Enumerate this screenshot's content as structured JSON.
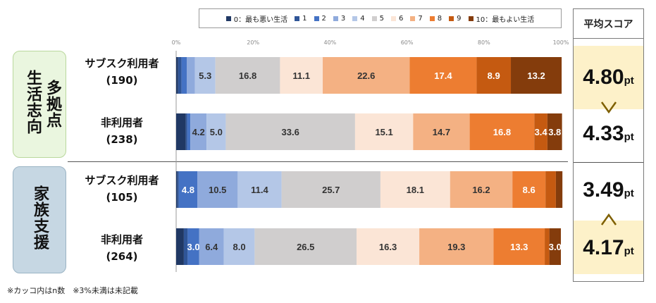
{
  "legend": [
    {
      "label": "0：最も悪い生活",
      "color": "#203864"
    },
    {
      "label": "1",
      "color": "#2f5597"
    },
    {
      "label": "2",
      "color": "#4472c4"
    },
    {
      "label": "3",
      "color": "#8faadc"
    },
    {
      "label": "4",
      "color": "#b4c7e7"
    },
    {
      "label": "5",
      "color": "#d0cece"
    },
    {
      "label": "6",
      "color": "#fbe5d6"
    },
    {
      "label": "7",
      "color": "#f4b183"
    },
    {
      "label": "8",
      "color": "#ed7d31"
    },
    {
      "label": "9",
      "color": "#c55a11"
    },
    {
      "label": "10：最もよい生活",
      "color": "#843c0c"
    }
  ],
  "groups": [
    {
      "chars": [
        "多",
        "拠",
        "点"
      ],
      "chars2": [
        "生",
        "活",
        "志",
        "向"
      ]
    },
    {
      "chars": [
        "家",
        "族",
        "支",
        "援"
      ]
    }
  ],
  "rows": [
    {
      "label": "サブスク利用者",
      "n": "(190)"
    },
    {
      "label": "非利用者",
      "n": "(238)"
    },
    {
      "label": "サブスク利用者",
      "n": "(105)"
    },
    {
      "label": "非利用者",
      "n": "(264)"
    }
  ],
  "score_panel": {
    "title": "平均スコア",
    "unit": "pt",
    "scores": [
      "4.80",
      "4.33",
      "3.49",
      "4.17"
    ]
  },
  "footnote": "※カッコ内はn数　※3%未満は未記載",
  "chart_data": {
    "type": "bar",
    "orientation": "horizontal",
    "stacked": true,
    "normalized": true,
    "xlim": [
      0,
      100
    ],
    "x_ticks": [
      "0%",
      "20%",
      "40%",
      "60%",
      "80%",
      "100%"
    ],
    "categories": [
      "サブスク利用者(190)",
      "非利用者(238)",
      "サブスク利用者(105)",
      "非利用者(264)"
    ],
    "label_threshold": 3,
    "series": [
      {
        "name": "0：最も悪い生活",
        "values": [
          0.5,
          2.5,
          0.3,
          2.0
        ]
      },
      {
        "name": "1",
        "values": [
          0.9,
          0.4,
          0.4,
          1.0
        ]
      },
      {
        "name": "2",
        "values": [
          1.4,
          0.8,
          4.8,
          3.0
        ]
      },
      {
        "name": "3",
        "values": [
          2.1,
          4.2,
          10.5,
          6.4
        ]
      },
      {
        "name": "4",
        "values": [
          5.3,
          5.0,
          11.4,
          8.0
        ]
      },
      {
        "name": "5",
        "values": [
          16.8,
          33.6,
          25.7,
          26.5
        ]
      },
      {
        "name": "6",
        "values": [
          11.1,
          15.1,
          18.1,
          16.3
        ]
      },
      {
        "name": "7",
        "values": [
          22.6,
          14.7,
          16.2,
          19.3
        ]
      },
      {
        "name": "8",
        "values": [
          17.4,
          16.8,
          8.6,
          13.3
        ]
      },
      {
        "name": "9",
        "values": [
          8.9,
          3.4,
          2.7,
          1.2
        ]
      },
      {
        "name": "10：最もよい生活",
        "values": [
          13.2,
          3.8,
          1.7,
          3.0
        ]
      }
    ]
  }
}
